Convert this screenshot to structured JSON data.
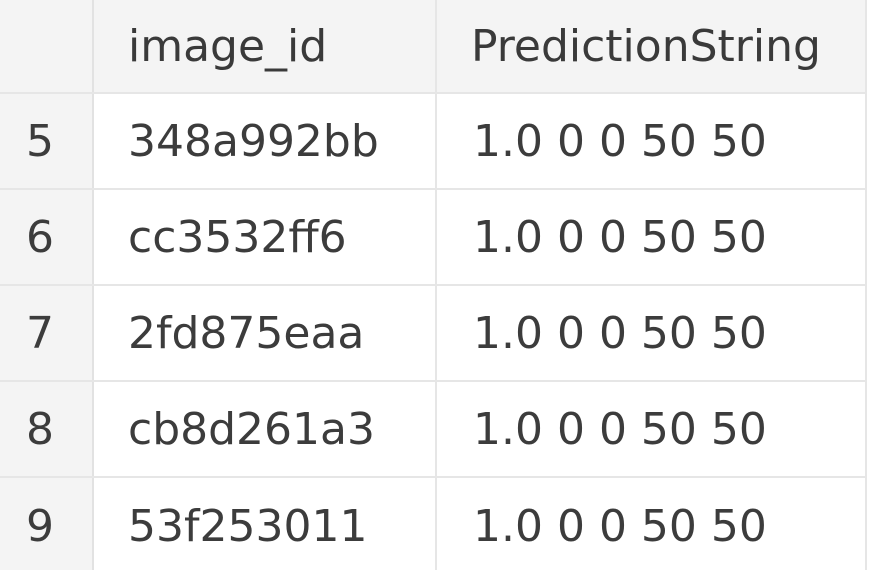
{
  "table": {
    "columns": [
      "",
      "image_id",
      "PredictionString"
    ],
    "rows": [
      {
        "index": "5",
        "image_id": "348a992bb",
        "prediction": "1.0 0 0 50 50"
      },
      {
        "index": "6",
        "image_id": "cc3532ff6",
        "prediction": "1.0 0 0 50 50"
      },
      {
        "index": "7",
        "image_id": "2fd875eaa",
        "prediction": "1.0 0 0 50 50"
      },
      {
        "index": "8",
        "image_id": "cb8d261a3",
        "prediction": "1.0 0 0 50 50"
      },
      {
        "index": "9",
        "image_id": "53f253011",
        "prediction": "1.0 0 0 50 50"
      }
    ]
  }
}
